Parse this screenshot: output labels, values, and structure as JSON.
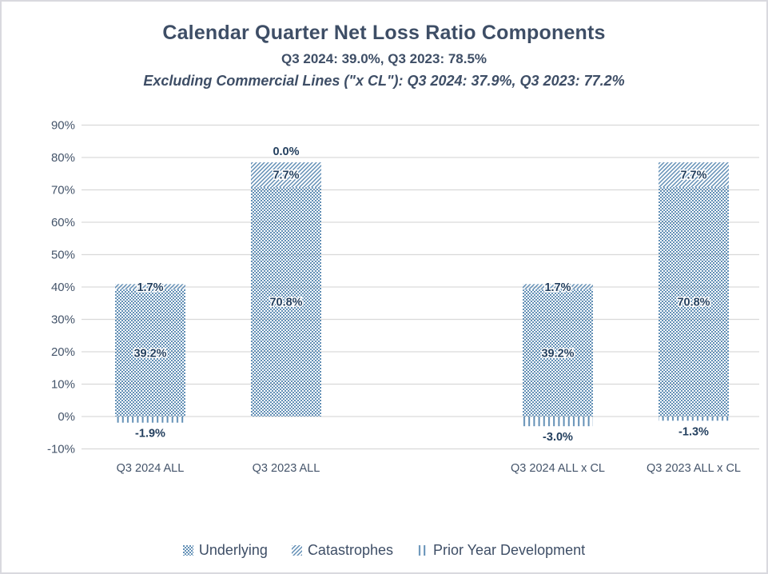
{
  "chart_data": {
    "type": "bar",
    "stacked": true,
    "title": "Calendar Quarter Net Loss Ratio Components",
    "subtitle": "Q3 2024: 39.0%, Q3 2023: 78.5%",
    "subtitle2": "Excluding Commercial Lines (\"x CL\"): Q3 2024: 37.9%, Q3 2023: 77.2%",
    "categories": [
      "Q3 2024 ALL",
      "Q3 2023 ALL",
      "Q3 2024 ALL x CL",
      "Q3 2023 ALL x CL"
    ],
    "series": [
      {
        "name": "Underlying",
        "pattern": "checker",
        "values": [
          39.2,
          70.8,
          39.2,
          70.8
        ]
      },
      {
        "name": "Catastrophes",
        "pattern": "diagonal",
        "values": [
          1.7,
          7.7,
          1.7,
          7.7
        ]
      },
      {
        "name": "Prior Year Development",
        "pattern": "vertical",
        "values": [
          -1.9,
          0.0,
          -3.0,
          -1.3
        ]
      }
    ],
    "data_label_format": "0.0%",
    "ylim": [
      -10,
      90
    ],
    "ytick_step": 10,
    "ytick_labels": [
      "90%",
      "80%",
      "70%",
      "60%",
      "50%",
      "40%",
      "30%",
      "20%",
      "10%",
      "0%",
      "-10%"
    ],
    "xlabel": "",
    "ylabel": "",
    "grid": true,
    "legend_position": "bottom",
    "colors": {
      "pattern_blue": "#6390B6",
      "hatch_blue": "#5E8CB4",
      "label_navy": "#24405F",
      "axis_text": "#44546A",
      "title_text": "#3E4E66",
      "gridline": "#D9D9D9"
    },
    "layout": {
      "plotLeft": 101,
      "plotRight": 951,
      "gridLeft": 100,
      "gridRight": 948,
      "y0": 519,
      "pxPerPct": 4.05,
      "barWidth": 88,
      "slotCount": 5,
      "slotIndices": [
        0,
        1,
        3,
        4
      ],
      "catLabelY": 588
    }
  }
}
